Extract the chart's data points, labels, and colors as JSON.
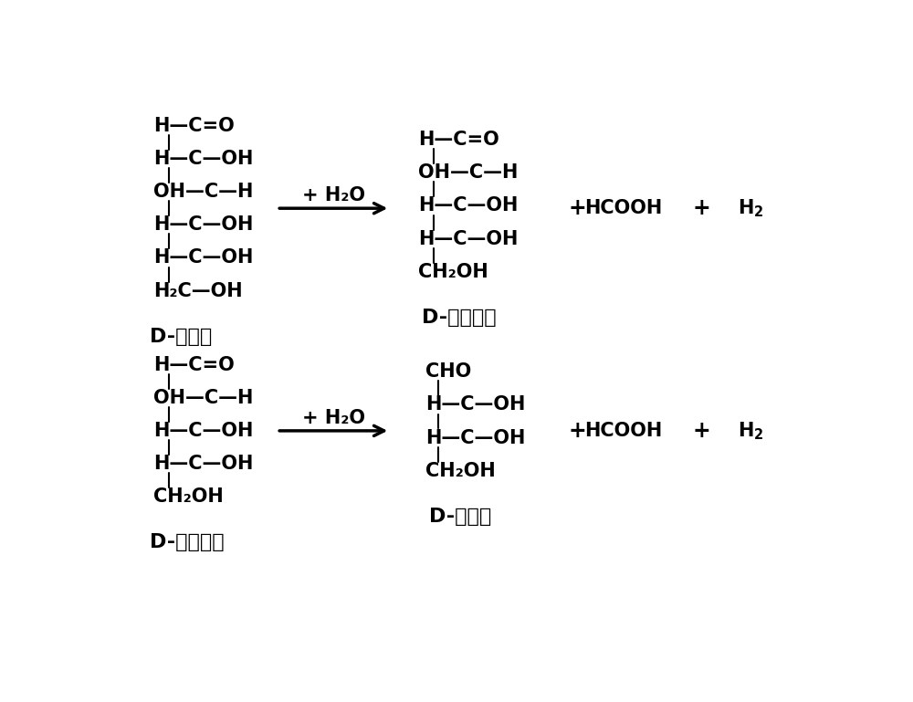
{
  "bg_color": "#ffffff",
  "figsize": [
    10.0,
    7.69
  ],
  "dpi": 100,
  "reaction1": {
    "reactant_lines": [
      "H—C=O",
      "H—C—OH",
      "OH—C—H",
      "H—C—OH",
      "H—C—OH",
      "H₂C—OH"
    ],
    "reactant_label": "D-葡萄糖",
    "condition": "+ H₂O",
    "product1_lines": [
      "H—C=O",
      "OH—C—H",
      "H—C—OH",
      "H—C—OH",
      "CH₂OH"
    ],
    "product1_label": "D-阿拉伯糖",
    "product2": "HCOOH",
    "product3": "H₂"
  },
  "reaction2": {
    "reactant_lines": [
      "H—C=O",
      "OH—C—H",
      "H—C—OH",
      "H—C—OH",
      "CH₂OH"
    ],
    "reactant_label": "D-阿拉伯糖",
    "condition": "+ H₂O",
    "product1_lines": [
      "CHO",
      "H—C—OH",
      "H—C—OH",
      "CH₂OH"
    ],
    "product1_label": "D-赤蕲糖",
    "product2": "HCOOH",
    "product3": "H₂"
  },
  "font_size_mol": 15,
  "font_size_label": 16,
  "font_size_condition": 15,
  "font_size_product": 15,
  "text_color": "#000000"
}
